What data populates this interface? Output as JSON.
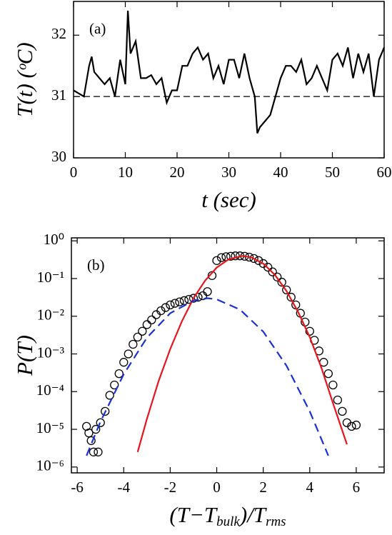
{
  "chart_data": [
    {
      "type": "line",
      "label": "(a)",
      "xlabel": "t (sec)",
      "ylabel": "T(t) (ᵒC)",
      "color": "#000000",
      "xlim": [
        0,
        60
      ],
      "ylim": [
        30,
        32.55
      ],
      "xticks": [
        0,
        10,
        20,
        30,
        40,
        50,
        60
      ],
      "yticks": [
        30,
        31,
        32
      ],
      "hline": 31,
      "x": [
        0,
        1,
        2,
        3,
        3.5,
        4,
        5,
        6,
        7,
        8,
        8.5,
        9,
        10,
        10.5,
        11,
        12,
        13,
        14,
        15,
        16,
        17,
        18,
        19,
        20,
        21,
        22,
        23,
        24,
        25,
        26,
        27,
        28,
        29,
        30,
        31,
        32,
        33,
        34,
        35,
        35.5,
        36,
        37,
        38,
        39,
        40,
        41,
        42,
        43,
        44,
        45,
        46,
        47,
        48,
        49,
        50,
        51,
        52,
        53,
        54,
        55,
        56,
        57,
        58,
        59,
        60
      ],
      "values": [
        31.1,
        31.05,
        31.0,
        31.5,
        31.65,
        31.4,
        31.3,
        31.2,
        31.3,
        31.0,
        31.3,
        31.6,
        31.2,
        32.4,
        31.7,
        31.9,
        31.3,
        31.3,
        31.35,
        31.2,
        31.3,
        30.9,
        31.1,
        31.1,
        31.5,
        31.5,
        31.7,
        31.8,
        31.6,
        31.7,
        31.3,
        31.5,
        31.2,
        31.6,
        31.6,
        31.3,
        31.7,
        31.3,
        31.0,
        30.4,
        30.5,
        30.6,
        30.7,
        31.0,
        31.3,
        31.5,
        31.5,
        31.4,
        31.6,
        31.2,
        31.3,
        31.5,
        31.3,
        31.1,
        31.6,
        31.7,
        31.5,
        31.8,
        31.3,
        31.7,
        31.4,
        31.7,
        31.0,
        31.6,
        31.8
      ]
    },
    {
      "type": "scatter",
      "label": "(b)",
      "xlabel": [
        "(T−T",
        "bulk",
        ")/T",
        "rms"
      ],
      "ylabel": "P(T)",
      "log_y": true,
      "xlim": [
        -6.25,
        7.2
      ],
      "ylim": [
        7e-07,
        1.2
      ],
      "xticks": [
        -6,
        -4,
        -2,
        0,
        2,
        4,
        6
      ],
      "yticks": [
        {
          "value": 1e-06,
          "label": "10⁻⁶"
        },
        {
          "value": 1e-05,
          "label": "10⁻⁵"
        },
        {
          "value": 0.0001,
          "label": "10⁻⁴"
        },
        {
          "value": 0.001,
          "label": "10⁻³"
        },
        {
          "value": 0.01,
          "label": "10⁻²"
        },
        {
          "value": 0.1,
          "label": "10⁻¹"
        },
        {
          "value": 1,
          "label": "10⁰"
        }
      ],
      "series": [
        {
          "kind": "marker",
          "color": "#000000",
          "x": [
            -5.6,
            -5.5,
            -5.4,
            -5.3,
            -5.1,
            -5.2,
            -5.0,
            -4.8,
            -4.6,
            -4.4,
            -4.2,
            -4.0,
            -3.8,
            -3.6,
            -3.4,
            -3.2,
            -3.0,
            -2.8,
            -2.6,
            -2.4,
            -2.2,
            -2.0,
            -1.8,
            -1.6,
            -1.4,
            -1.2,
            -1.0,
            -0.8,
            -0.6,
            -0.4,
            -0.2,
            0,
            0.2,
            0.4,
            0.6,
            0.8,
            1.0,
            1.2,
            1.4,
            1.6,
            1.8,
            2.0,
            2.2,
            2.4,
            2.6,
            2.8,
            3.0,
            3.2,
            3.4,
            3.6,
            3.8,
            4.0,
            4.2,
            4.4,
            4.6,
            4.8,
            5.0,
            5.2,
            5.4,
            5.6,
            5.8,
            6.0
          ],
          "values": [
            1.2e-05,
            8e-06,
            5e-06,
            2.5e-06,
            2.5e-06,
            1e-05,
            1.5e-05,
            3e-05,
            8e-05,
            0.00015,
            0.0003,
            0.0006,
            0.001,
            0.0018,
            0.0028,
            0.004,
            0.006,
            0.008,
            0.011,
            0.014,
            0.017,
            0.02,
            0.022,
            0.024,
            0.026,
            0.028,
            0.03,
            0.032,
            0.035,
            0.045,
            0.12,
            0.3,
            0.36,
            0.38,
            0.39,
            0.4,
            0.4,
            0.39,
            0.37,
            0.34,
            0.3,
            0.25,
            0.2,
            0.15,
            0.11,
            0.08,
            0.05,
            0.032,
            0.02,
            0.012,
            0.007,
            0.004,
            0.0023,
            0.0012,
            0.0006,
            0.0003,
            0.00015,
            6e-05,
            3e-05,
            1.5e-05,
            1.2e-05,
            1.3e-05
          ]
        },
        {
          "kind": "line",
          "color": "#e8141c",
          "x": [
            -3.4,
            -3,
            -2.5,
            -2,
            -1.5,
            -1,
            -0.5,
            0,
            0.5,
            1.1,
            1.5,
            2,
            2.5,
            3,
            3.5,
            4,
            4.5,
            5,
            5.6
          ],
          "values": [
            2.5e-06,
            1.9e-05,
            0.00019,
            0.00135,
            0.0073,
            0.03,
            0.088,
            0.195,
            0.32,
            0.4,
            0.36,
            0.25,
            0.126,
            0.047,
            0.013,
            0.0028,
            0.00043,
            4.9e-05,
            4e-06
          ]
        },
        {
          "kind": "dashed",
          "color": "#1a2fd6",
          "x": [
            -5.6,
            -5,
            -4,
            -3,
            -2,
            -1,
            -0.4,
            0,
            1,
            2,
            3,
            4,
            4.8
          ],
          "values": [
            2e-06,
            1.6e-05,
            0.00029,
            0.0027,
            0.012,
            0.026,
            0.03,
            0.028,
            0.015,
            0.0039,
            0.00049,
            3e-05,
            2e-06
          ]
        }
      ]
    }
  ]
}
